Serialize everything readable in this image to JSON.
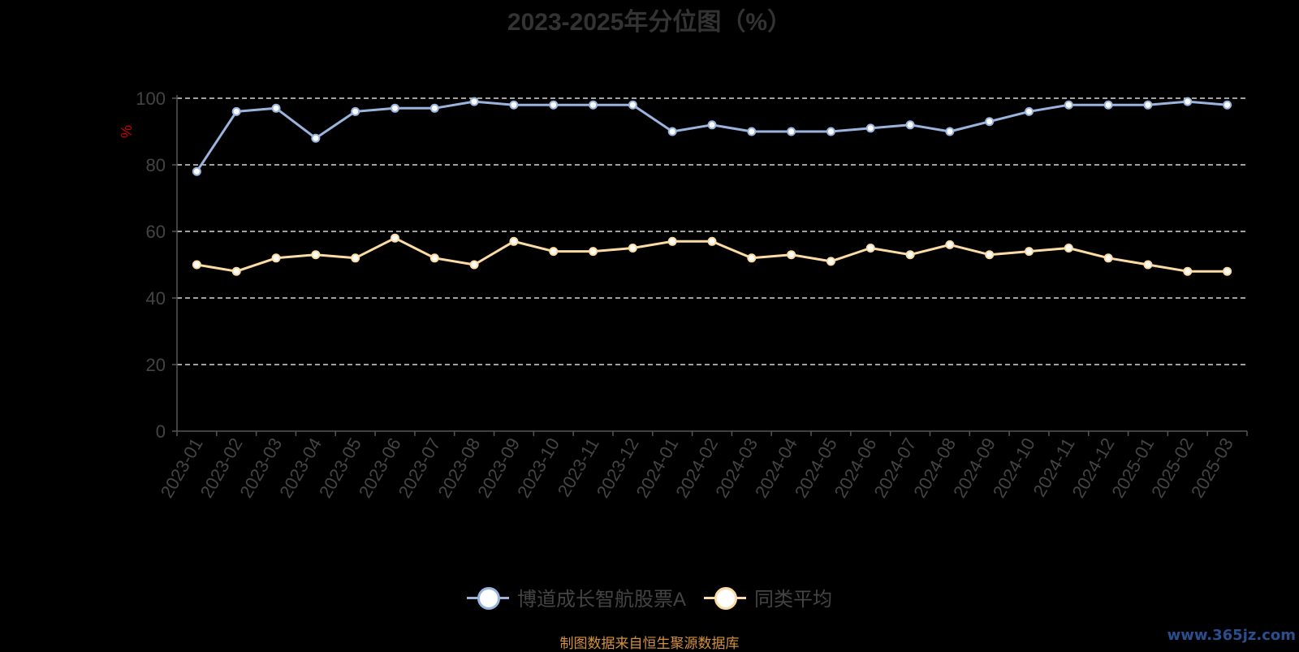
{
  "page": {
    "title": "2023-2025年分位图（%）",
    "source": "制图数据来自恒生聚源数据库",
    "watermark": "www.365jz.com"
  },
  "colors": {
    "series1": "#9ab4de",
    "series2": "#fcdca4",
    "axis": "#555555",
    "grid": "#ffffff",
    "ylabel": "#cc0000"
  },
  "chart_data": {
    "type": "line",
    "title": "2023-2025年分位图（%）",
    "ylabel": "%",
    "ylim": [
      0,
      100
    ],
    "yticks": [
      0,
      20,
      40,
      60,
      80,
      100
    ],
    "grid": true,
    "legend_position": "bottom",
    "categories": [
      "2023-01",
      "2023-02",
      "2023-03",
      "2023-04",
      "2023-05",
      "2023-06",
      "2023-07",
      "2023-08",
      "2023-09",
      "2023-10",
      "2023-11",
      "2023-12",
      "2024-01",
      "2024-02",
      "2024-03",
      "2024-04",
      "2024-05",
      "2024-06",
      "2024-07",
      "2024-08",
      "2024-09",
      "2024-10",
      "2024-11",
      "2024-12",
      "2025-01",
      "2025-02",
      "2025-03"
    ],
    "series": [
      {
        "name": "博道成长智航股票A",
        "values": [
          78,
          96,
          97,
          88,
          96,
          97,
          97,
          99,
          98,
          98,
          98,
          98,
          90,
          92,
          90,
          90,
          90,
          91,
          92,
          90,
          93,
          96,
          98,
          98,
          98,
          99,
          98
        ]
      },
      {
        "name": "同类平均",
        "values": [
          50,
          48,
          52,
          53,
          52,
          58,
          52,
          50,
          57,
          54,
          54,
          55,
          57,
          57,
          52,
          53,
          51,
          55,
          53,
          56,
          53,
          54,
          55,
          52,
          50,
          48,
          48
        ]
      }
    ]
  }
}
